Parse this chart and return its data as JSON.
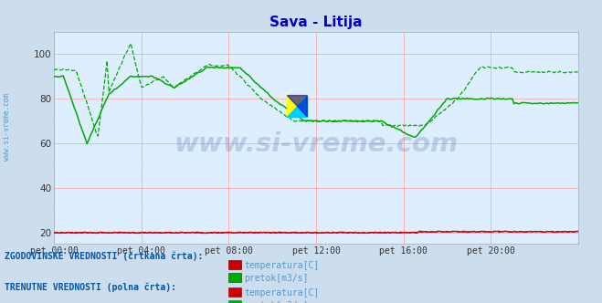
{
  "title": "Sava - Litija",
  "title_color": "#0000cc",
  "bg_color": "#ccdded",
  "plot_bg_color": "#ddeeff",
  "grid_color_major": "#ffaaaa",
  "grid_color_minor": "#ffdddd",
  "x_ticks": [
    0,
    4,
    8,
    12,
    16,
    20
  ],
  "x_tick_labels": [
    "pet 00:00",
    "pet 04:00",
    "pet 08:00",
    "pet 12:00",
    "pet 16:00",
    "pet 20:00"
  ],
  "x_max": 24,
  "y_ticks": [
    20,
    40,
    60,
    80,
    100
  ],
  "ylim": [
    15,
    110
  ],
  "legend1_title": "ZGODOVINSKE VREDNOSTI (črtkana črta):",
  "legend2_title": "TRENUTNE VREDNOSTI (polna črta):",
  "legend_text_color": "#0055aa",
  "legend_label_color": "#5599cc",
  "temp_color": "#cc0000",
  "flow_color": "#00aa00",
  "sidebar_text": "www.si-vreme.com",
  "sidebar_color": "#4488bb",
  "watermark_text": "www.si-vreme.com",
  "watermark_color": "#223377",
  "watermark_alpha": 0.18,
  "tick_color": "#333333"
}
